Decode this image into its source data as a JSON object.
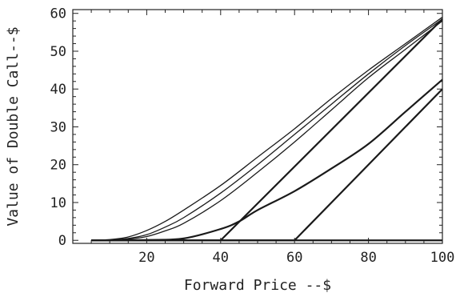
{
  "chart_data": {
    "type": "line",
    "title": "",
    "xlabel": "Forward Price --$",
    "ylabel": "Value of Double Call--$",
    "xlim": [
      0,
      100
    ],
    "ylim": [
      0,
      60
    ],
    "x_ticks": [
      20,
      40,
      60,
      80,
      100
    ],
    "y_ticks": [
      0,
      10,
      20,
      30,
      40,
      50,
      60
    ],
    "grid": false,
    "legend": "none",
    "line_color": "#1a1a1a",
    "series": [
      {
        "x": [
          5,
          10,
          15,
          20,
          25,
          30,
          40,
          50,
          60,
          70,
          80,
          90,
          100
        ],
        "y": [
          0,
          0.2,
          0.9,
          2.6,
          5,
          8,
          14.5,
          22,
          29.5,
          37.5,
          45,
          52,
          59
        ]
      },
      {
        "x": [
          5,
          10,
          15,
          20,
          25,
          30,
          40,
          50,
          60,
          70,
          80,
          90,
          100
        ],
        "y": [
          0,
          0.1,
          0.5,
          1.5,
          3.5,
          6,
          12.5,
          20,
          28,
          36,
          44,
          51.5,
          58.5
        ]
      },
      {
        "x": [
          5,
          10,
          15,
          20,
          25,
          30,
          40,
          50,
          60,
          70,
          80,
          90,
          100
        ],
        "y": [
          0,
          0.05,
          0.3,
          1,
          2.5,
          4.5,
          10.5,
          18,
          26,
          34.5,
          43,
          50.5,
          58
        ]
      },
      {
        "x": [
          5,
          20,
          30,
          40,
          45,
          50,
          60,
          70,
          80,
          90,
          100
        ],
        "y": [
          0,
          0.1,
          0.5,
          3,
          5,
          8,
          13,
          19,
          25.5,
          34,
          42.5
        ]
      },
      {
        "x": [
          5,
          40,
          100
        ],
        "y": [
          0,
          0,
          58.5
        ]
      },
      {
        "x": [
          5,
          60,
          100
        ],
        "y": [
          0,
          0,
          40
        ]
      },
      {
        "x": [
          5,
          100
        ],
        "y": [
          0,
          0
        ]
      }
    ]
  }
}
